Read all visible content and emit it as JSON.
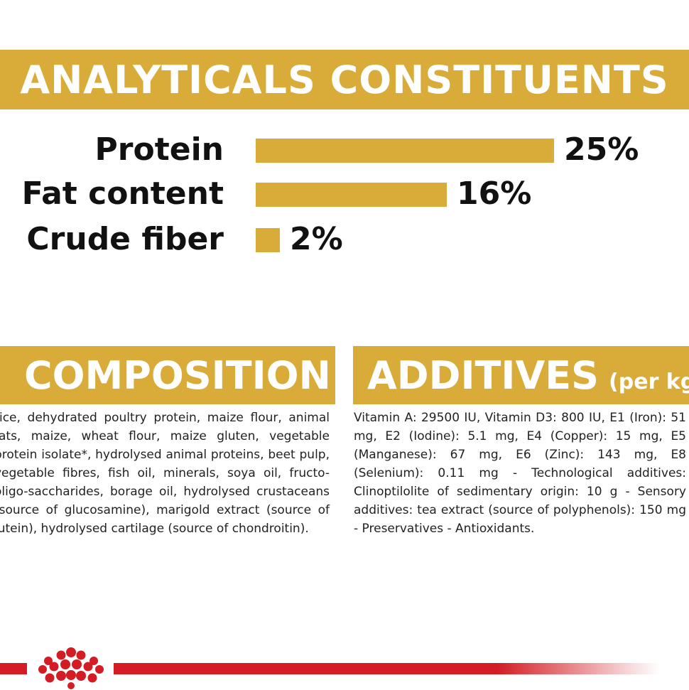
{
  "analytics": {
    "title": "ANALYTICALS CONSTITUENTS",
    "rows": [
      {
        "label": "Protein",
        "percent": "25%",
        "value": 25
      },
      {
        "label": "Fat content",
        "percent": "16%",
        "value": 16
      },
      {
        "label": "Crude fiber",
        "percent": "2%",
        "value": 2
      }
    ]
  },
  "composition": {
    "title": "COMPOSITION",
    "text": "rice, dehydrated poultry protein, maize flour, animal fats, maize, wheat flour, maize gluten, vegetable protein isolate*, hydrolysed animal proteins, beet pulp, vegetable fibres, fish oil, minerals, soya oil, fructo-oligo-saccharides, borage oil, hydrolysed crustaceans (source of glucosamine), marigold extract (source of lutein), hydrolysed cartilage (source of chondroitin)."
  },
  "additives": {
    "title": "ADDITIVES",
    "subtitle": "(per kg)",
    "text": "Vitamin A: 29500 IU, Vitamin D3: 800 IU, E1 (Iron): 51 mg, E2 (Iodine): 5.1 mg, E4 (Copper): 15 mg, E5 (Manganese): 67 mg, E6 (Zinc): 143 mg, E8 (Selenium): 0.11 mg - Technological additives: Clinoptilolite of sedimentary origin: 10 g - Sensory additives: tea extract (source of polyphenols): 150 mg - Preservatives - Antioxidants."
  },
  "colors": {
    "accent": "#d9ac3a",
    "brand_red": "#d31c24",
    "text": "#111111"
  },
  "footer": {
    "logo_icon": "crown-icon"
  }
}
